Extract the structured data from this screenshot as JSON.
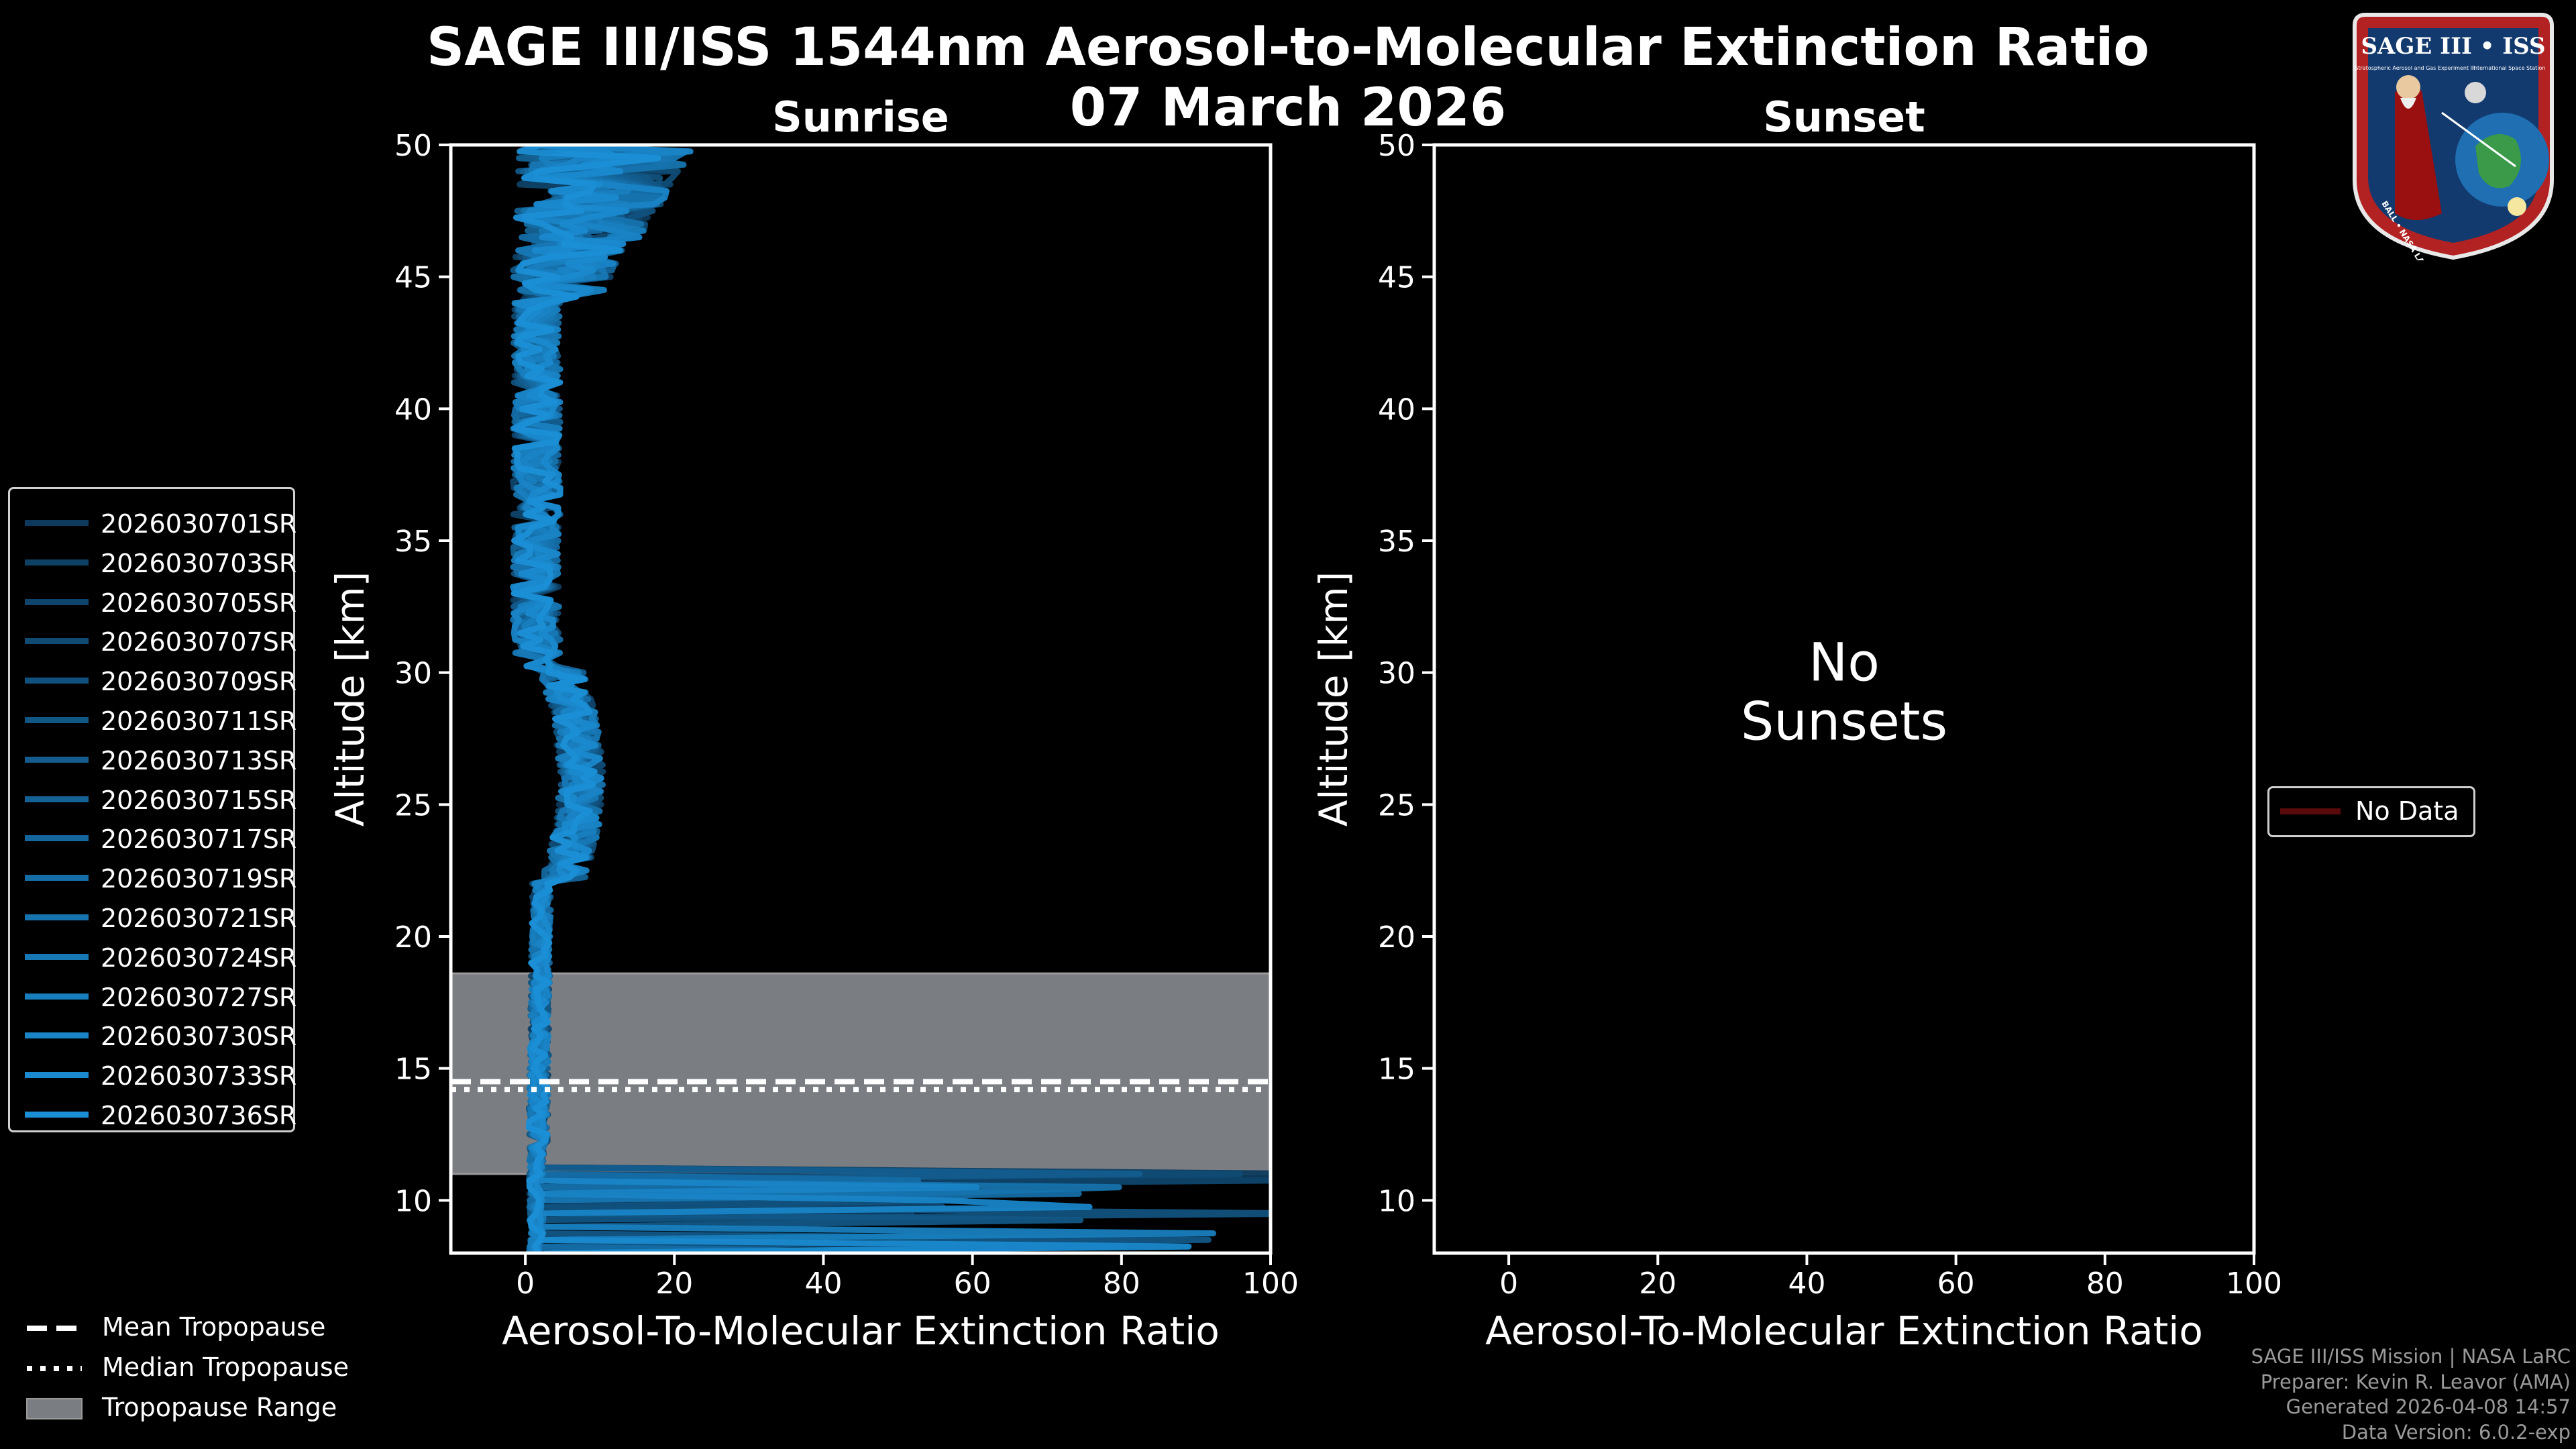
{
  "title_line1": "SAGE III/ISS 1544nm Aerosol-to-Molecular Extinction Ratio",
  "title_line2": "07 March 2026",
  "logo_text": "SAGE III • ISS",
  "logo_ring_text": "BALL • NASA LANGLEY RESEARCH CENTER • TAS-I • ESA",
  "logo_small_text_left": "Stratospheric Aerosol and Gas Experiment III",
  "logo_small_text_right": "International Space Station",
  "colors": {
    "background": "#000000",
    "series_dark": "#0d3a5c",
    "series_light": "#1b8fd6",
    "tropopause_band": "#7a7d82",
    "no_data": "#5a0a0a"
  },
  "chart_data": [
    {
      "type": "line",
      "panel": "sunrise",
      "title": "Sunrise",
      "xlabel": "Aerosol-To-Molecular Extinction Ratio",
      "ylabel": "Altitude [km]",
      "xlim": [
        -10,
        100
      ],
      "ylim": [
        8,
        50
      ],
      "xticks": [
        0,
        20,
        40,
        60,
        80,
        100
      ],
      "yticks": [
        10,
        15,
        20,
        25,
        30,
        35,
        40,
        45,
        50
      ],
      "tropopause": {
        "range_km": [
          11.0,
          18.6
        ],
        "mean_km": 14.5,
        "median_km": 14.2
      },
      "series": [
        {
          "name": "2026030701SR"
        },
        {
          "name": "2026030703SR"
        },
        {
          "name": "2026030705SR"
        },
        {
          "name": "2026030707SR"
        },
        {
          "name": "2026030709SR"
        },
        {
          "name": "2026030711SR"
        },
        {
          "name": "2026030713SR"
        },
        {
          "name": "2026030715SR"
        },
        {
          "name": "2026030717SR"
        },
        {
          "name": "2026030719SR"
        },
        {
          "name": "2026030721SR"
        },
        {
          "name": "2026030724SR"
        },
        {
          "name": "2026030727SR"
        },
        {
          "name": "2026030730SR"
        },
        {
          "name": "2026030733SR"
        },
        {
          "name": "2026030736SR"
        }
      ],
      "legend": "left",
      "legend_extra": [
        "Mean Tropopause",
        "Median Tropopause",
        "Tropopause Range"
      ]
    },
    {
      "type": "line",
      "panel": "sunset",
      "title": "Sunset",
      "xlabel": "Aerosol-To-Molecular Extinction Ratio",
      "ylabel": "Altitude [km]",
      "xlim": [
        -10,
        100
      ],
      "ylim": [
        8,
        50
      ],
      "xticks": [
        0,
        20,
        40,
        60,
        80,
        100
      ],
      "yticks": [
        10,
        15,
        20,
        25,
        30,
        35,
        40,
        45,
        50
      ],
      "annotation_line1": "No",
      "annotation_line2": "Sunsets",
      "series": [
        {
          "name": "No Data"
        }
      ],
      "legend": "right"
    }
  ],
  "credits": [
    "SAGE III/ISS Mission | NASA LaRC",
    "Preparer: Kevin R. Leavor (AMA)",
    "Generated 2026-04-08 14:57",
    "Data Version: 6.0.2-exp"
  ]
}
